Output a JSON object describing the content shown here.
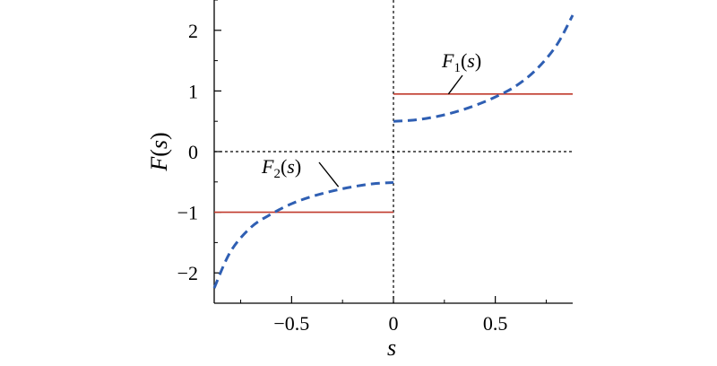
{
  "chart_data": {
    "type": "line",
    "title": "",
    "xlabel": "s",
    "ylabel": "F(s)",
    "xlim": [
      -0.88,
      0.88
    ],
    "ylim": [
      -2.5,
      2.5
    ],
    "x_ticks": [
      -0.5,
      0,
      0.5
    ],
    "x_tick_labels": [
      "−0.5",
      "0",
      "0.5"
    ],
    "y_ticks": [
      -2,
      -1,
      0,
      1,
      2
    ],
    "y_tick_labels": [
      "−2",
      "−1",
      "0",
      "1",
      "2"
    ],
    "grid": false,
    "reference_lines": [
      {
        "orientation": "horizontal",
        "value": 0,
        "style": "dotted",
        "color": "#000000"
      },
      {
        "orientation": "vertical",
        "value": 0,
        "style": "dotted",
        "color": "#000000"
      }
    ],
    "series": [
      {
        "style": "solid",
        "color": "#c0392b",
        "segments": [
          {
            "x": [
              -0.88,
              0
            ],
            "y": [
              -1,
              -1
            ]
          },
          {
            "x": [
              0,
              0.88
            ],
            "y": [
              0.95,
              0.95
            ]
          }
        ]
      },
      {
        "style": "dashed",
        "color": "#2f5fb3",
        "segments": [
          {
            "x": [
              -0.88,
              -0.8,
              -0.7,
              -0.6,
              -0.5,
              -0.4,
              -0.3,
              -0.2,
              -0.1,
              0
            ],
            "y": [
              -2.25,
              -1.65,
              -1.25,
              -1.03,
              -0.86,
              -0.74,
              -0.65,
              -0.58,
              -0.53,
              -0.51
            ]
          },
          {
            "x": [
              0,
              0.1,
              0.2,
              0.3,
              0.4,
              0.5,
              0.6,
              0.7,
              0.8,
              0.88
            ],
            "y": [
              0.5,
              0.52,
              0.57,
              0.65,
              0.76,
              0.9,
              1.08,
              1.35,
              1.75,
              2.25
            ]
          }
        ]
      }
    ],
    "annotations": [
      {
        "base": "F",
        "sub": "1",
        "tail": "(s)",
        "points_to": {
          "x": 0.27,
          "y": 0.95
        }
      },
      {
        "base": "F",
        "sub": "2",
        "tail": "(s)",
        "points_to": {
          "x": -0.27,
          "y": -0.58
        }
      }
    ]
  }
}
